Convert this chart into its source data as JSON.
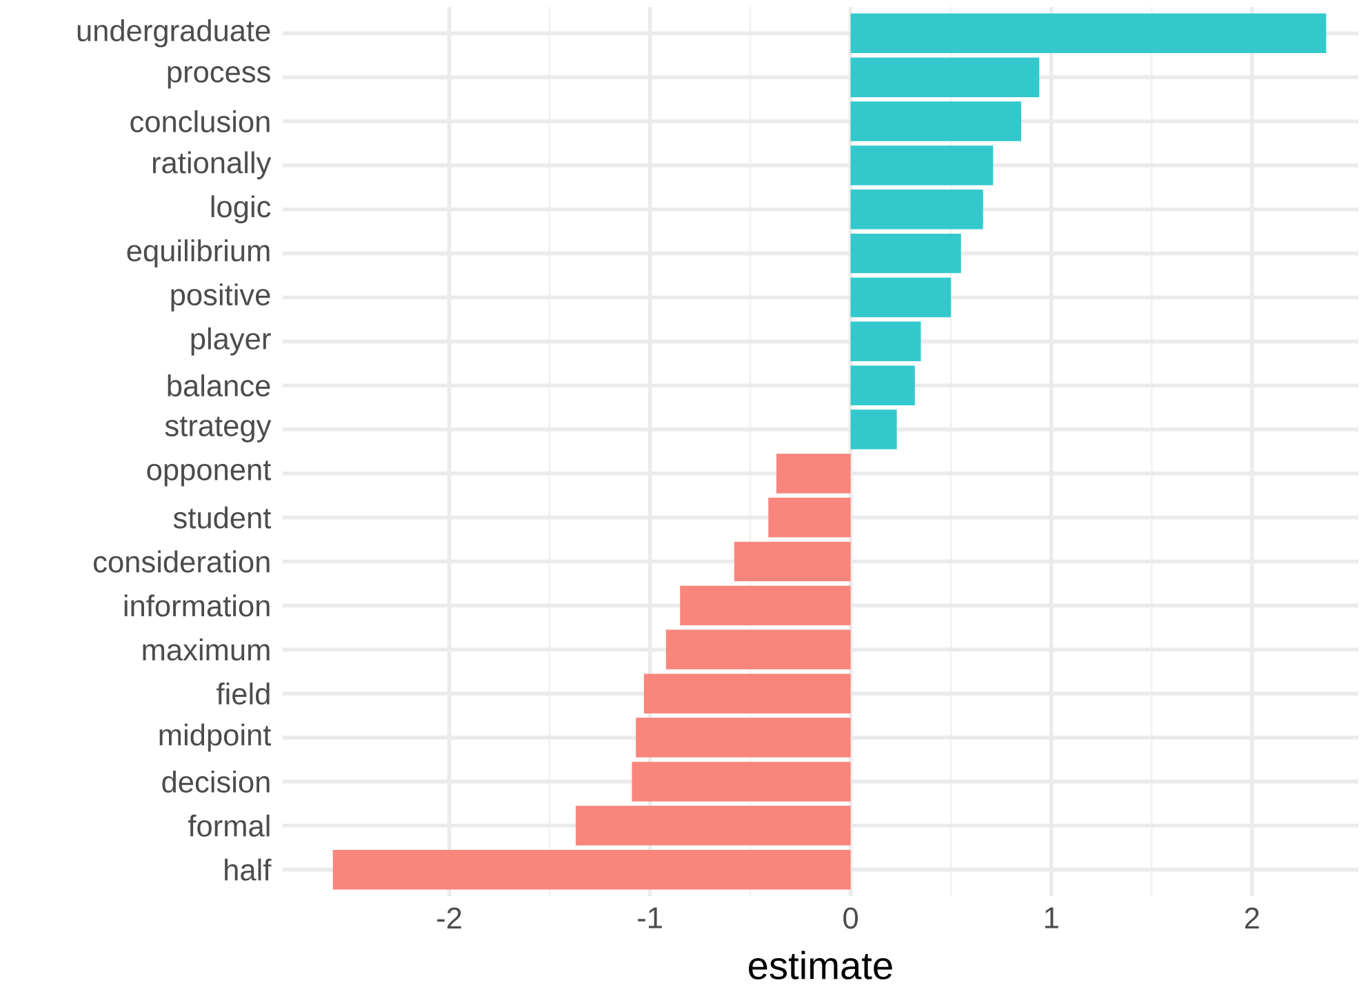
{
  "chart_data": {
    "type": "bar",
    "orientation": "horizontal",
    "xlabel": "estimate",
    "categories": [
      "undergraduate",
      "process",
      "conclusion",
      "rationally",
      "logic",
      "equilibrium",
      "positive",
      "player",
      "balance",
      "strategy",
      "opponent",
      "student",
      "consideration",
      "information",
      "maximum",
      "field",
      "midpoint",
      "decision",
      "formal",
      "half"
    ],
    "values": [
      2.37,
      0.94,
      0.85,
      0.71,
      0.66,
      0.55,
      0.5,
      0.35,
      0.32,
      0.23,
      -0.37,
      -0.41,
      -0.58,
      -0.85,
      -0.92,
      -1.03,
      -1.07,
      -1.09,
      -1.37,
      -2.58
    ],
    "colors": [
      "#33c9cc",
      "#33c9cc",
      "#33c9cc",
      "#33c9cc",
      "#33c9cc",
      "#33c9cc",
      "#33c9cc",
      "#33c9cc",
      "#33c9cc",
      "#33c9cc",
      "#f8867d",
      "#f8867d",
      "#f8867d",
      "#f8867d",
      "#f8867d",
      "#f8867d",
      "#f8867d",
      "#f8867d",
      "#f8867d",
      "#f8867d"
    ],
    "xlim": [
      -2.83,
      2.53
    ],
    "xticks": [
      -2,
      -1,
      0,
      1,
      2
    ],
    "grid": true
  }
}
